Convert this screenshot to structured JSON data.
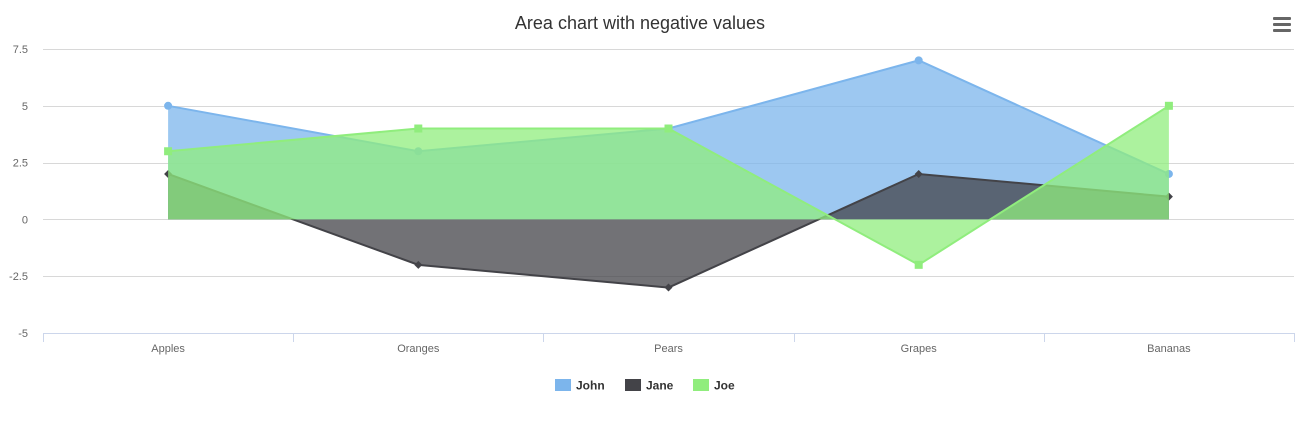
{
  "chart_data": {
    "type": "area",
    "title": "Area chart with negative values",
    "categories": [
      "Apples",
      "Oranges",
      "Pears",
      "Grapes",
      "Bananas"
    ],
    "ylim": [
      -5,
      7.5
    ],
    "yticks": [
      -5,
      -2.5,
      0,
      2.5,
      5,
      7.5
    ],
    "ytick_labels": [
      "-5",
      "-2.5",
      "0",
      "2.5",
      "5",
      "7.5"
    ],
    "grid": true,
    "legend_position": "bottom-center",
    "series": [
      {
        "name": "John",
        "values": [
          5,
          3,
          4,
          7,
          2
        ],
        "color": "#7cb5ec",
        "marker": "circle"
      },
      {
        "name": "Jane",
        "values": [
          2,
          -2,
          -3,
          2,
          1
        ],
        "color": "#434348",
        "marker": "diamond"
      },
      {
        "name": "Joe",
        "values": [
          3,
          4,
          4,
          -2,
          5
        ],
        "color": "#90ed7d",
        "marker": "square"
      }
    ]
  },
  "toolbar": {
    "menu_icon": "hamburger-menu-icon"
  }
}
